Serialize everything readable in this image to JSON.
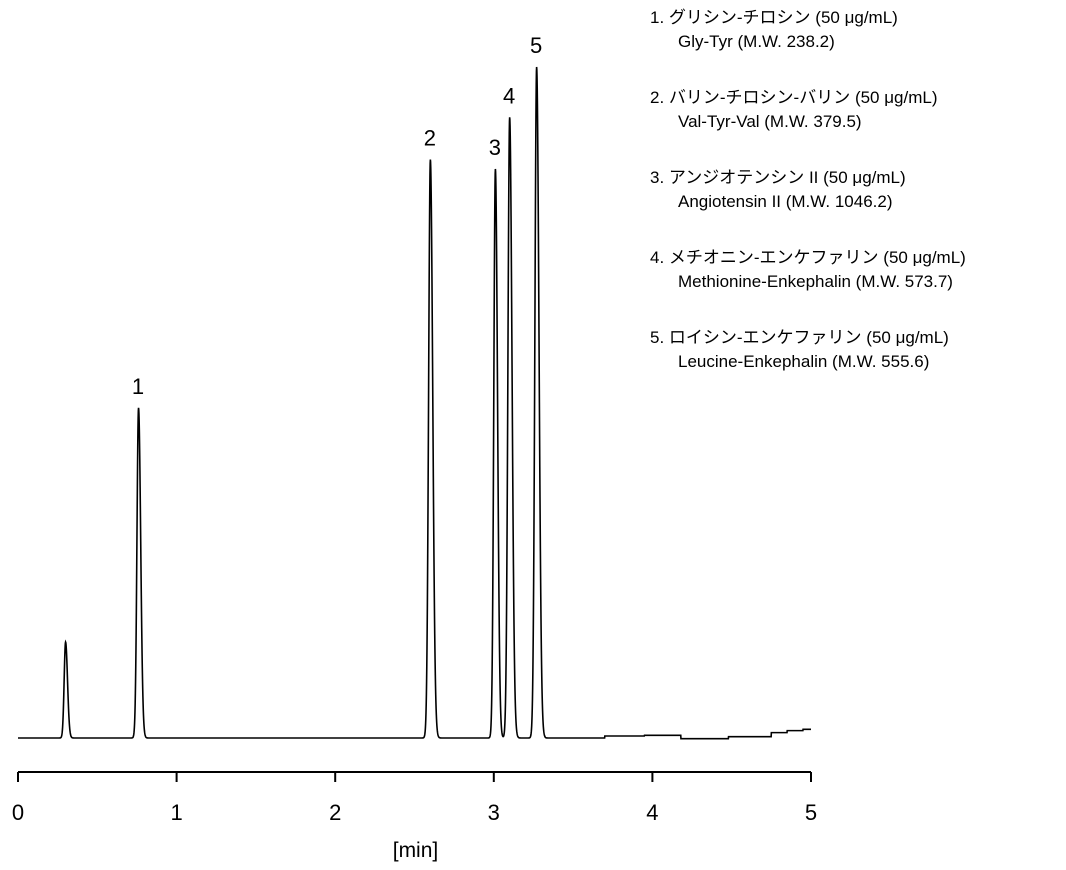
{
  "chart_data": {
    "type": "line",
    "xlabel": "[min]",
    "ylabel": "",
    "xlim": [
      0,
      5
    ],
    "x_ticks": [
      0,
      1,
      2,
      3,
      4,
      5
    ],
    "x_tick_labels": [
      "0",
      "1",
      "2",
      "3",
      "4",
      "5"
    ],
    "y_relative_range": [
      0,
      1
    ],
    "grid": false,
    "legend_position": "top-right",
    "series": [
      {
        "peaks": [
          {
            "label": "",
            "rt": 0.3,
            "height": 0.143,
            "width": 0.009
          },
          {
            "label": "1",
            "rt": 0.76,
            "height": 0.492,
            "width": 0.01
          },
          {
            "label": "2",
            "rt": 2.6,
            "height": 0.862,
            "width": 0.011
          },
          {
            "label": "3",
            "rt": 3.01,
            "height": 0.848,
            "width": 0.01
          },
          {
            "label": "4",
            "rt": 3.1,
            "height": 0.925,
            "width": 0.011
          },
          {
            "label": "5",
            "rt": 3.27,
            "height": 1.0,
            "width": 0.011
          }
        ],
        "baseline_steps": [
          {
            "x": 3.7,
            "y": 0.003
          },
          {
            "x": 3.95,
            "y": 0.004
          },
          {
            "x": 4.18,
            "y": -0.001
          },
          {
            "x": 4.48,
            "y": 0.002
          },
          {
            "x": 4.75,
            "y": 0.008
          },
          {
            "x": 4.85,
            "y": 0.011
          },
          {
            "x": 4.95,
            "y": 0.013
          }
        ]
      }
    ],
    "legend": [
      {
        "line1": "1. グリシン-チロシン (50 μg/mL)",
        "line2": "Gly-Tyr (M.W. 238.2)"
      },
      {
        "line1": "2. バリン-チロシン-バリン (50 μg/mL)",
        "line2": "Val-Tyr-Val (M.W. 379.5)"
      },
      {
        "line1": "3. アンジオテンシン II (50 μg/mL)",
        "line2": "Angiotensin II (M.W. 1046.2)"
      },
      {
        "line1": "4. メチオニン-エンケファリン (50 μg/mL)",
        "line2": "Methionine-Enkephalin (M.W. 573.7)"
      },
      {
        "line1": "5. ロイシン-エンケファリン (50 μg/mL)",
        "line2": "Leucine-Enkephalin (M.W. 555.6)"
      }
    ],
    "line_color": "#000000"
  }
}
